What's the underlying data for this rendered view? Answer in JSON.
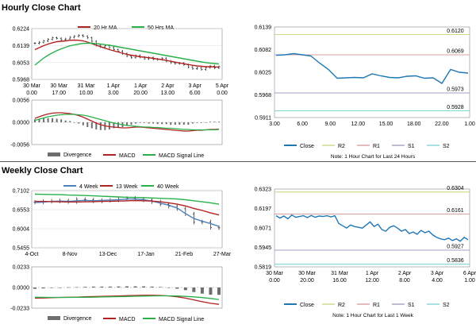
{
  "hourly": {
    "section_title": "Hourly Close Chart",
    "left": {
      "price": {
        "type": "ohlc+line",
        "legend": [
          "20 Hr MA",
          "50 Hrs MA"
        ],
        "ylim": [
          0.5968,
          0.6224
        ],
        "yticks": [
          "0.6224",
          "0.6139",
          "0.6053",
          "0.5968"
        ],
        "yticks_num": [
          0.6224,
          0.6139,
          0.6053,
          0.5968
        ],
        "xticks": [
          [
            "30 Mar",
            "0.00"
          ],
          [
            "30 Mar",
            "17.00"
          ],
          [
            "31 Mar",
            "10.00"
          ],
          [
            "1 Apr",
            "3.00"
          ],
          [
            "1 Apr",
            "20.00"
          ],
          [
            "2 Apr",
            "13.00"
          ],
          [
            "3 Apr",
            "6.00"
          ],
          [
            "5 Apr",
            "0.00"
          ]
        ],
        "close": [
          0.615,
          0.6155,
          0.6162,
          0.617,
          0.6178,
          0.6175,
          0.6168,
          0.6172,
          0.618,
          0.6185,
          0.619,
          0.6185,
          0.6178,
          0.616,
          0.614,
          0.6132,
          0.6138,
          0.6128,
          0.6118,
          0.611,
          0.6098,
          0.6085,
          0.6078,
          0.6088,
          0.608,
          0.6072,
          0.6078,
          0.607,
          0.6068,
          0.6075,
          0.606,
          0.6052,
          0.6048,
          0.605,
          0.6042,
          0.603,
          0.6022,
          0.6025,
          0.6018,
          0.6028,
          0.6035,
          0.6026,
          0.6032
        ],
        "ma20": [
          0.6118,
          0.6128,
          0.6138,
          0.6146,
          0.6153,
          0.6158,
          0.616,
          0.6162,
          0.6165,
          0.6166,
          0.6165,
          0.6162,
          0.6156,
          0.6148,
          0.614,
          0.6133,
          0.6125,
          0.6118,
          0.6112,
          0.6106,
          0.61,
          0.6094,
          0.609,
          0.6086,
          0.6082,
          0.608,
          0.6077,
          0.6074,
          0.6071,
          0.6068,
          0.6064,
          0.6059,
          0.6055,
          0.6051,
          0.6047,
          0.6043,
          0.6039,
          0.6036,
          0.6034,
          0.6032,
          0.6032,
          0.6031,
          0.6031
        ],
        "ma50": [
          0.604,
          0.6058,
          0.6075,
          0.609,
          0.6102,
          0.6113,
          0.6122,
          0.613,
          0.6137,
          0.6142,
          0.6146,
          0.6149,
          0.615,
          0.615,
          0.6148,
          0.6146,
          0.6143,
          0.614,
          0.6136,
          0.6132,
          0.6128,
          0.6124,
          0.612,
          0.6116,
          0.6112,
          0.6108,
          0.6104,
          0.61,
          0.6096,
          0.6092,
          0.6088,
          0.6084,
          0.608,
          0.6076,
          0.6072,
          0.6068,
          0.6064,
          0.606,
          0.6056,
          0.6053,
          0.605,
          0.6048,
          0.6046
        ]
      },
      "macd": {
        "type": "macd",
        "legend": [
          "Divergence",
          "MACD",
          "MACD Signal Line"
        ],
        "ylim": [
          -0.0056,
          0.0056
        ],
        "yticks": [
          "0.0056",
          "0.0000",
          "-0.0056"
        ],
        "yticks_num": [
          0.0056,
          0.0,
          -0.0056
        ],
        "macd": [
          0.001,
          0.0014,
          0.0018,
          0.0021,
          0.0023,
          0.0024,
          0.0024,
          0.0023,
          0.0022,
          0.002,
          0.0017,
          0.0013,
          0.0008,
          0.0003,
          -0.0002,
          -0.0006,
          -0.0009,
          -0.0011,
          -0.0012,
          -0.0013,
          -0.0014,
          -0.0014,
          -0.0013,
          -0.0012,
          -0.0012,
          -0.0013,
          -0.0014,
          -0.0015,
          -0.0016,
          -0.0017,
          -0.0018,
          -0.0019,
          -0.002,
          -0.0021,
          -0.0022,
          -0.0022,
          -0.0021,
          -0.002,
          -0.002,
          -0.0019,
          -0.0018,
          -0.0018,
          -0.0017
        ],
        "signal": [
          0.0005,
          0.0008,
          0.0011,
          0.0014,
          0.0016,
          0.0018,
          0.0019,
          0.002,
          0.002,
          0.002,
          0.0019,
          0.0018,
          0.0016,
          0.0013,
          0.001,
          0.0007,
          0.0004,
          0.0001,
          -0.0002,
          -0.0004,
          -0.0006,
          -0.0008,
          -0.0009,
          -0.001,
          -0.0011,
          -0.0012,
          -0.0012,
          -0.0013,
          -0.0013,
          -0.0014,
          -0.0015,
          -0.0015,
          -0.0016,
          -0.0017,
          -0.0018,
          -0.0018,
          -0.0019,
          -0.0019,
          -0.0019,
          -0.0019,
          -0.0019,
          -0.0019,
          -0.0018
        ]
      }
    },
    "right": {
      "type": "line",
      "ylim": [
        0.5911,
        0.6139
      ],
      "yticks": [
        "0.6139",
        "0.6082",
        "0.6025",
        "0.5968",
        "0.5911"
      ],
      "yticks_num": [
        0.6139,
        0.6082,
        0.6025,
        0.5968,
        0.5911
      ],
      "xticks": [
        "3.00",
        "6.00",
        "9.00",
        "12.00",
        "15.00",
        "18.00",
        "22.00",
        "1.00"
      ],
      "close": [
        0.6068,
        0.6069,
        0.6072,
        0.6069,
        0.6066,
        0.6048,
        0.6032,
        0.601,
        0.6011,
        0.6012,
        0.6011,
        0.6021,
        0.6016,
        0.6012,
        0.6011,
        0.6015,
        0.6016,
        0.601,
        0.6011,
        0.5997,
        0.6032,
        0.6025,
        0.6023
      ],
      "levels": [
        {
          "name": "R2",
          "value": 0.612,
          "label": "0.6120",
          "color": "#c8d98a"
        },
        {
          "name": "R1",
          "value": 0.6069,
          "label": "0.6069",
          "color": "#d9a0a0"
        },
        {
          "name": "S1",
          "value": 0.5973,
          "label": "0.5973",
          "color": "#a0a0c0"
        },
        {
          "name": "S2",
          "value": 0.5928,
          "label": "0.5928",
          "color": "#7fd6d6"
        }
      ],
      "legend": [
        "Close",
        "R2",
        "R1",
        "S1",
        "S2"
      ],
      "note": "Note: 1 Hour Chart for Last 24 Hours"
    }
  },
  "weekly": {
    "section_title": "Weekly Close Chart",
    "left": {
      "price": {
        "type": "ohlc+line",
        "legend": [
          "4 Week",
          "13 Week",
          "40 Week"
        ],
        "ylim": [
          0.5455,
          0.7102
        ],
        "yticks": [
          "0.7102",
          "0.6553",
          "0.6004",
          "0.5455"
        ],
        "yticks_num": [
          0.7102,
          0.6553,
          0.6004,
          0.5455
        ],
        "xticks": [
          "4-Oct",
          "8-Nov",
          "13-Dec",
          "17-Jan",
          "21-Feb",
          "27-Mar"
        ],
        "close": [
          0.677,
          0.679,
          0.68,
          0.681,
          0.678,
          0.685,
          0.684,
          0.68,
          0.682,
          0.683,
          0.685,
          0.688,
          0.686,
          0.683,
          0.678,
          0.671,
          0.665,
          0.658,
          0.643,
          0.619,
          0.62,
          0.604,
          0.603
        ],
        "wk4": [
          0.676,
          0.677,
          0.679,
          0.68,
          0.679,
          0.681,
          0.682,
          0.681,
          0.682,
          0.683,
          0.684,
          0.686,
          0.686,
          0.684,
          0.68,
          0.674,
          0.668,
          0.66,
          0.644,
          0.63,
          0.622,
          0.615,
          0.607
        ],
        "wk13": [
          0.679,
          0.679,
          0.6785,
          0.678,
          0.6775,
          0.6775,
          0.678,
          0.6785,
          0.679,
          0.6795,
          0.68,
          0.681,
          0.6815,
          0.681,
          0.68,
          0.678,
          0.675,
          0.671,
          0.666,
          0.659,
          0.653,
          0.646,
          0.64
        ],
        "wk40": [
          0.7,
          0.6995,
          0.699,
          0.6985,
          0.6975,
          0.697,
          0.696,
          0.695,
          0.694,
          0.693,
          0.692,
          0.691,
          0.6905,
          0.69,
          0.689,
          0.688,
          0.687,
          0.686,
          0.684,
          0.681,
          0.678,
          0.675,
          0.671
        ]
      },
      "macd": {
        "type": "macd",
        "legend": [
          "Divergence",
          "MACD",
          "MACD Signal Line"
        ],
        "ylim": [
          -0.0233,
          0.0233
        ],
        "yticks": [
          "0.0233",
          "0.0000",
          "-0.0233"
        ],
        "yticks_num": [
          0.0233,
          0.0,
          -0.0233
        ],
        "macd": [
          -0.012,
          -0.0118,
          -0.0115,
          -0.0112,
          -0.011,
          -0.0108,
          -0.0105,
          -0.0102,
          -0.01,
          -0.0098,
          -0.0095,
          -0.0092,
          -0.009,
          -0.0088,
          -0.0088,
          -0.009,
          -0.0095,
          -0.0105,
          -0.012,
          -0.014,
          -0.016,
          -0.0178,
          -0.019
        ],
        "signal": [
          -0.011,
          -0.0111,
          -0.0112,
          -0.0112,
          -0.0112,
          -0.0111,
          -0.011,
          -0.0109,
          -0.0107,
          -0.0105,
          -0.0103,
          -0.0101,
          -0.0099,
          -0.0097,
          -0.0095,
          -0.0094,
          -0.0094,
          -0.0096,
          -0.01,
          -0.0106,
          -0.0114,
          -0.0124,
          -0.0135
        ]
      }
    },
    "right": {
      "type": "line",
      "ylim": [
        0.5819,
        0.6323
      ],
      "yticks": [
        "0.6323",
        "0.6197",
        "0.6071",
        "0.5945",
        "0.5819"
      ],
      "yticks_num": [
        0.6323,
        0.6197,
        0.6071,
        0.5945,
        0.5819
      ],
      "xticks": [
        [
          "30 Mar",
          "0.00"
        ],
        [
          "30 Mar",
          "20.00"
        ],
        [
          "31 Mar",
          "16.00"
        ],
        [
          "1 Apr",
          "12.00"
        ],
        [
          "2 Apr",
          "8.00"
        ],
        [
          "3 Apr",
          "4.00"
        ],
        [
          "6 Apr",
          "1.00"
        ]
      ],
      "close": [
        0.615,
        0.6135,
        0.6148,
        0.613,
        0.6155,
        0.614,
        0.6145,
        0.615,
        0.6138,
        0.6152,
        0.614,
        0.6148,
        0.6145,
        0.615,
        0.6142,
        0.615,
        0.61,
        0.6085,
        0.607,
        0.609,
        0.608,
        0.6075,
        0.607,
        0.609,
        0.611,
        0.608,
        0.6095,
        0.606,
        0.605,
        0.6075,
        0.6085,
        0.607,
        0.605,
        0.606,
        0.6035,
        0.6045,
        0.603,
        0.6055,
        0.604,
        0.605,
        0.6025,
        0.601,
        0.6,
        0.5995,
        0.6005,
        0.599,
        0.6,
        0.5985,
        0.601,
        0.5995
      ],
      "levels": [
        {
          "name": "R2",
          "value": 0.6304,
          "label": "0.6304",
          "color": "#c8d98a"
        },
        {
          "name": "R1",
          "value": 0.6161,
          "label": "0.6161",
          "color": "#d9a0a0"
        },
        {
          "name": "S1",
          "value": 0.5927,
          "label": "0.5927",
          "color": "#a0a0c0"
        },
        {
          "name": "S2",
          "value": 0.5836,
          "label": "0.5836",
          "color": "#7fd6d6"
        }
      ],
      "legend": [
        "Close",
        "R2",
        "R1",
        "S1",
        "S2"
      ],
      "note": "Note: 1 Hour Chart for Last 1 Week"
    }
  },
  "colors": {
    "ma_red": "#b22222",
    "ma_green": "#2ab04a",
    "ma_blue": "#4f81bd",
    "close_blue": "#1f77b4",
    "bar_black": "#222222",
    "div_gray": "#6e6e6e",
    "axis_gray": "#888888"
  }
}
